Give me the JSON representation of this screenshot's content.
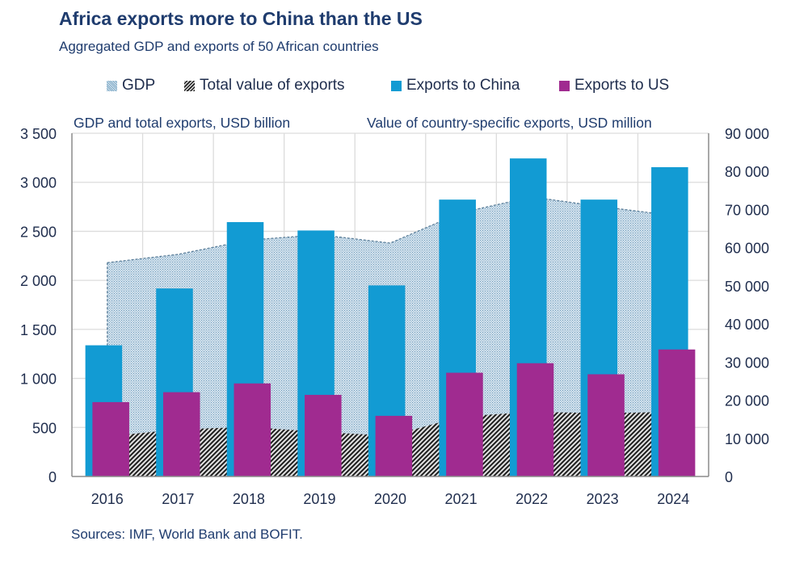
{
  "chart_data": {
    "type": "bar",
    "title": "Africa exports more to China than the US",
    "subtitle": "Aggregated GDP and exports of 50 African countries",
    "categories": [
      "2016",
      "2017",
      "2018",
      "2019",
      "2020",
      "2021",
      "2022",
      "2023",
      "2024"
    ],
    "left_axis": {
      "label": "GDP and total exports, USD billion",
      "range": [
        0,
        3500
      ],
      "ticks": [
        "0",
        "500",
        "1 000",
        "1 500",
        "2 000",
        "2 500",
        "3 000",
        "3 500"
      ],
      "tick_values": [
        0,
        500,
        1000,
        1500,
        2000,
        2500,
        3000,
        3500
      ]
    },
    "right_axis": {
      "label": "Value of country-specific exports, USD million",
      "range": [
        0,
        90000
      ],
      "ticks": [
        "0",
        "10 000",
        "20 000",
        "30 000",
        "40 000",
        "50 000",
        "60 000",
        "70 000",
        "80 000",
        "90 000"
      ],
      "tick_values": [
        0,
        10000,
        20000,
        30000,
        40000,
        50000,
        60000,
        70000,
        80000,
        90000
      ]
    },
    "series": [
      {
        "name": "GDP",
        "kind": "area",
        "axis": "left",
        "color": "#a9c8dc",
        "values": [
          2180,
          2265,
          2410,
          2465,
          2380,
          2690,
          2850,
          2750,
          2660
        ]
      },
      {
        "name": "Total value of exports",
        "kind": "area",
        "axis": "left",
        "color": "#3a3a3a",
        "values": [
          410,
          480,
          505,
          455,
          415,
          610,
          660,
          645,
          660
        ]
      },
      {
        "name": "Exports to China",
        "kind": "bar",
        "axis": "right",
        "color": "#129bd3",
        "values": [
          34400,
          49300,
          66700,
          64500,
          50100,
          72600,
          83400,
          72600,
          81100
        ]
      },
      {
        "name": "Exports to US",
        "kind": "bar",
        "axis": "right",
        "color": "#a02b90",
        "values": [
          19500,
          22100,
          24400,
          21400,
          15900,
          27200,
          29700,
          26800,
          33300
        ]
      }
    ],
    "grid": true,
    "legend_position": "top",
    "source": "Sources: IMF, World Bank and BOFIT."
  }
}
